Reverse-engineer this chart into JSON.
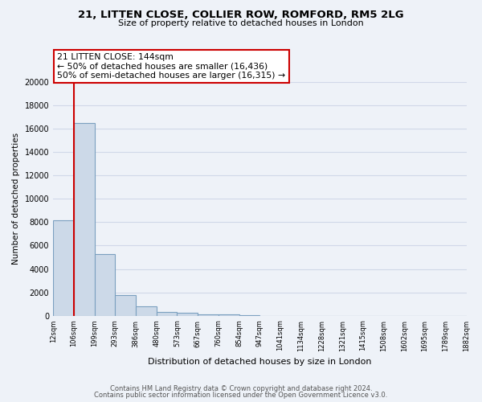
{
  "title1": "21, LITTEN CLOSE, COLLIER ROW, ROMFORD, RM5 2LG",
  "title2": "Size of property relative to detached houses in London",
  "xlabel": "Distribution of detached houses by size in London",
  "ylabel": "Number of detached properties",
  "bar_values": [
    8200,
    16500,
    5300,
    1800,
    800,
    300,
    270,
    150,
    100,
    80,
    0,
    0,
    0,
    0,
    0,
    0,
    0,
    0,
    0,
    0
  ],
  "bar_labels": [
    "12sqm",
    "106sqm",
    "199sqm",
    "293sqm",
    "386sqm",
    "480sqm",
    "573sqm",
    "667sqm",
    "760sqm",
    "854sqm",
    "947sqm",
    "1041sqm",
    "1134sqm",
    "1228sqm",
    "1321sqm",
    "1415sqm",
    "1508sqm",
    "1602sqm",
    "1695sqm",
    "1789sqm",
    "1882sqm"
  ],
  "bar_color": "#ccd9e8",
  "bar_edge_color": "#7ba0c0",
  "vline_x": 1,
  "vline_color": "#cc0000",
  "ylim": [
    0,
    20000
  ],
  "yticks": [
    0,
    2000,
    4000,
    6000,
    8000,
    10000,
    12000,
    14000,
    16000,
    18000,
    20000
  ],
  "annotation_title": "21 LITTEN CLOSE: 144sqm",
  "annotation_line1": "← 50% of detached houses are smaller (16,436)",
  "annotation_line2": "50% of semi-detached houses are larger (16,315) →",
  "annotation_box_color": "#ffffff",
  "annotation_box_edge": "#cc0000",
  "footer1": "Contains HM Land Registry data © Crown copyright and database right 2024.",
  "footer2": "Contains public sector information licensed under the Open Government Licence v3.0.",
  "bg_color": "#eef2f8",
  "plot_bg_color": "#eef2f8",
  "grid_color": "#d0d8e8"
}
